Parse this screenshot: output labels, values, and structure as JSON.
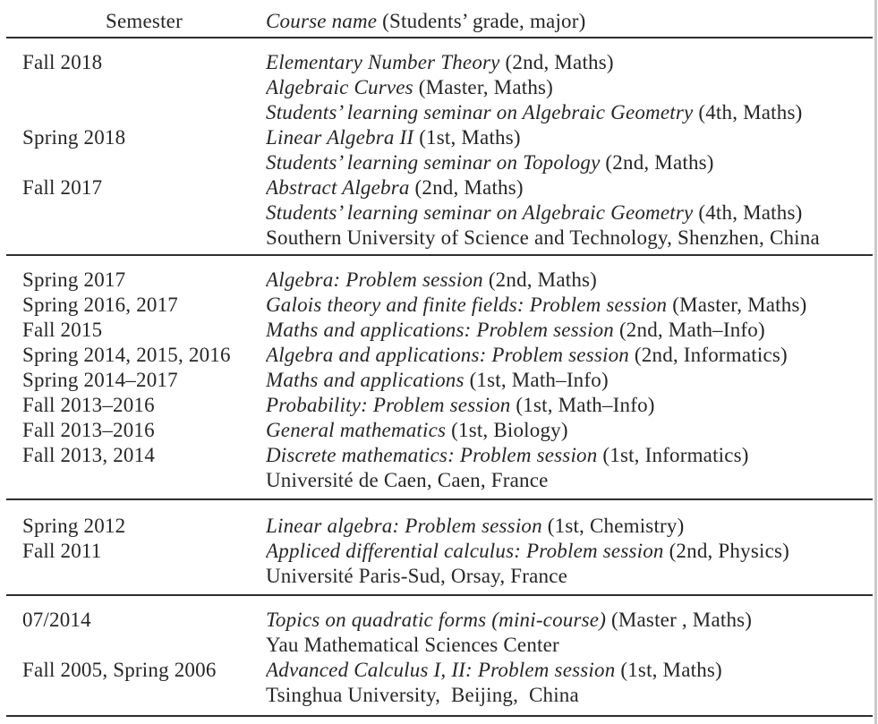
{
  "page": {
    "background": "#ffffff",
    "text_color": "#262626",
    "rule_color": "#2e2e2e"
  },
  "header": {
    "semester": "Semester",
    "course_italic": "Course name",
    "course_roman": " (Students’ grade, major)"
  },
  "sections": [
    {
      "rows": [
        {
          "sem": "Fall 2018",
          "it": "Elementary Number Theory",
          "ro": " (2nd, Maths)"
        },
        {
          "sem": "",
          "it": "Algebraic Curves",
          "ro": " (Master, Maths)"
        },
        {
          "sem": "",
          "it": "Students’ learning seminar on Algebraic Geometry",
          "ro": " (4th, Maths)"
        },
        {
          "sem": "Spring 2018",
          "it": "Linear Algebra II",
          "ro": " (1st, Maths)"
        },
        {
          "sem": "",
          "it": "Students’ learning seminar on Topology",
          "ro": " (2nd, Maths)"
        },
        {
          "sem": "Fall 2017",
          "it": "Abstract Algebra",
          "ro": " (2nd, Maths)"
        },
        {
          "sem": "",
          "it": "Students’ learning seminar on Algebraic Geometry",
          "ro": " (4th, Maths)"
        },
        {
          "sem": "",
          "it": "",
          "ro": "Southern University of Science and Technology, Shenzhen, China"
        }
      ]
    },
    {
      "rows": [
        {
          "sem": "Spring 2017",
          "it": "Algebra: Problem session",
          "ro": " (2nd, Maths)"
        },
        {
          "sem": "Spring 2016, 2017",
          "it": "Galois theory and finite fields: Problem session",
          "ro": " (Master, Maths)"
        },
        {
          "sem": "Fall 2015",
          "it": "Maths and applications: Problem session",
          "ro": " (2nd, Math–Info)"
        },
        {
          "sem": "Spring 2014, 2015, 2016",
          "it": "Algebra and applications: Problem session",
          "ro": " (2nd, Informatics)"
        },
        {
          "sem": "Spring 2014–2017",
          "it": "Maths and applications",
          "ro": " (1st, Math–Info)"
        },
        {
          "sem": "Fall 2013–2016",
          "it": "Probability: Problem session",
          "ro": " (1st, Math–Info)"
        },
        {
          "sem": "Fall 2013–2016",
          "it": "General mathematics",
          "ro": " (1st, Biology)"
        },
        {
          "sem": "Fall 2013, 2014",
          "it": "Discrete mathematics: Problem session",
          "ro": " (1st, Informatics)"
        },
        {
          "sem": "",
          "it": "",
          "ro": "Université de Caen, Caen, France"
        }
      ]
    },
    {
      "rows": [
        {
          "sem": "Spring 2012",
          "it": "Linear algebra: Problem session",
          "ro": " (1st, Chemistry)"
        },
        {
          "sem": "Fall 2011",
          "it": "Appliced differential calculus: Problem session",
          "ro": " (2nd, Physics)"
        },
        {
          "sem": "",
          "it": "",
          "ro": "Université Paris-Sud, Orsay, France"
        }
      ]
    },
    {
      "rows": [
        {
          "sem": "07/2014",
          "it": "Topics on quadratic forms (mini-course)",
          "ro": " (Master , Maths)"
        },
        {
          "sem": "",
          "it": "",
          "ro": "Yau Mathematical Sciences Center"
        },
        {
          "sem": "Fall 2005, Spring 2006",
          "it": "Advanced Calculus I, II: Problem session",
          "ro": " (1st, Maths)"
        },
        {
          "sem": "",
          "it": "",
          "ro": "Tsinghua University,  Beijing,  China"
        }
      ]
    }
  ]
}
